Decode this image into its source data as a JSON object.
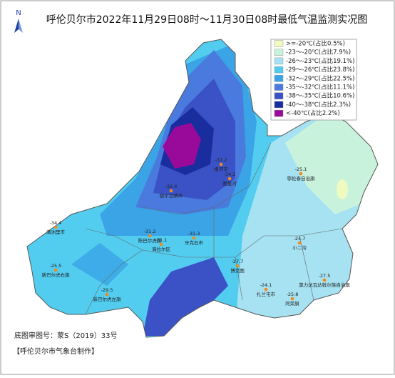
{
  "title": "呼伦贝尔市2022年11月29日08时～11月30日08时最低气温监测实况图",
  "compass": "N",
  "legend": [
    {
      "label": ">=-20℃(占比0.5%)",
      "color": "#eefac0"
    },
    {
      "label": "-23～-20℃(占比7.9%)",
      "color": "#c8f2dc"
    },
    {
      "label": "-26～-23℃(占比19.1%)",
      "color": "#a6e2f2"
    },
    {
      "label": "-29～-26℃(占比23.8%)",
      "color": "#52cdf0"
    },
    {
      "label": "-32～-29℃(占比22.5%)",
      "color": "#3aa4e6"
    },
    {
      "label": "-35～-32℃(占比11.1%)",
      "color": "#4a7ade"
    },
    {
      "label": "-38～-35℃(占比10.6%)",
      "color": "#3a52c6"
    },
    {
      "label": "-40～-38℃(占比2.3%)",
      "color": "#1a2d9e"
    },
    {
      "label": "<-40℃(占比2.2%)",
      "color": "#9a0a9a"
    }
  ],
  "stations": [
    {
      "value": "-34.4",
      "name": "满洲里市"
    },
    {
      "value": "-25.5",
      "name": "新巴尔虎右旗"
    },
    {
      "value": "-29.5",
      "name": "新巴尔虎左旗"
    },
    {
      "value": "-31.2",
      "name": "陈巴尔虎旗"
    },
    {
      "value": "-31.1",
      "name": "海拉尔区"
    },
    {
      "value": "-31.3",
      "name": "牙克石市"
    },
    {
      "value": "-32.4",
      "name": "额尔古纳市"
    },
    {
      "value": "-37.2",
      "name": "根河市"
    },
    {
      "value": "-34.2",
      "name": "图里河"
    },
    {
      "value": "-25.1",
      "name": "鄂伦春自治旗"
    },
    {
      "value": "-24.7",
      "name": "小二沟"
    },
    {
      "value": "-27.7",
      "name": "博克图"
    },
    {
      "value": "-27.5",
      "name": "莫力达瓦达斡尔族自治旗"
    },
    {
      "value": "-24.1",
      "name": "扎兰屯市"
    },
    {
      "value": "-25.8",
      "name": "阿荣旗"
    }
  ],
  "footer": {
    "approval": "底图审图号：蒙S（2019）33号",
    "maker": "【呼伦贝尔市气象台制作】"
  }
}
